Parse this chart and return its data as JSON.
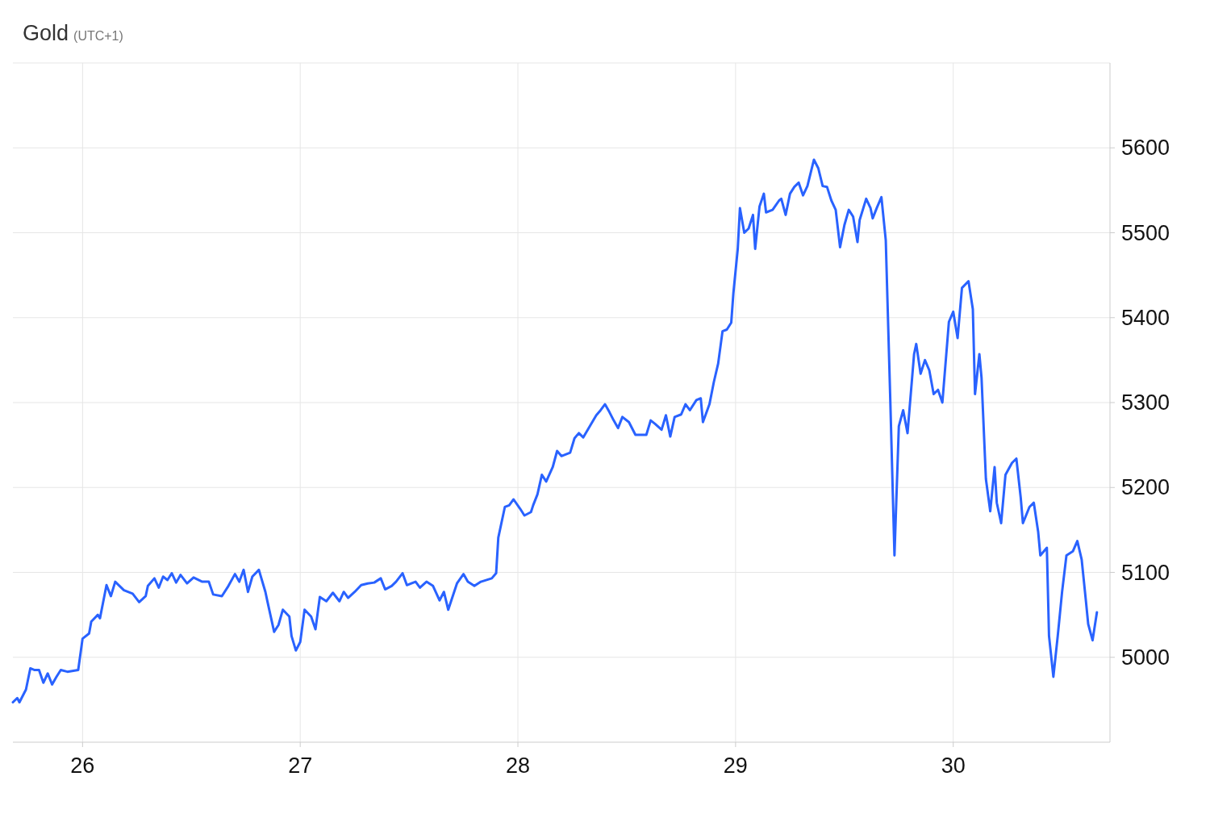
{
  "chart_data": {
    "type": "line",
    "title": "Gold",
    "subtitle": "(UTC+1)",
    "x": [
      25.68,
      25.7,
      25.71,
      25.74,
      25.76,
      25.78,
      25.8,
      25.82,
      25.84,
      25.86,
      25.88,
      25.9,
      25.93,
      25.98,
      26.0,
      26.03,
      26.04,
      26.07,
      26.08,
      26.11,
      26.13,
      26.15,
      26.17,
      26.19,
      26.23,
      26.26,
      26.29,
      26.3,
      26.33,
      26.35,
      26.37,
      26.39,
      26.41,
      26.43,
      26.45,
      26.48,
      26.51,
      26.55,
      26.58,
      26.6,
      26.64,
      26.67,
      26.7,
      26.72,
      26.74,
      26.76,
      26.78,
      26.81,
      26.84,
      26.85,
      26.88,
      26.9,
      26.92,
      26.95,
      26.96,
      26.98,
      27.0,
      27.02,
      27.05,
      27.07,
      27.09,
      27.12,
      27.15,
      27.18,
      27.2,
      27.22,
      27.25,
      27.28,
      27.31,
      27.34,
      27.37,
      27.39,
      27.42,
      27.44,
      27.47,
      27.49,
      27.53,
      27.55,
      27.58,
      27.61,
      27.64,
      27.66,
      27.68,
      27.72,
      27.75,
      27.77,
      27.8,
      27.83,
      27.88,
      27.9,
      27.91,
      27.94,
      27.96,
      27.98,
      28.01,
      28.03,
      28.06,
      28.07,
      28.09,
      28.11,
      28.13,
      28.16,
      28.18,
      28.2,
      28.24,
      28.26,
      28.28,
      28.3,
      28.33,
      28.36,
      28.38,
      28.4,
      28.42,
      28.44,
      28.46,
      28.48,
      28.51,
      28.54,
      28.59,
      28.61,
      28.63,
      28.66,
      28.68,
      28.7,
      28.72,
      28.75,
      28.77,
      28.79,
      28.82,
      28.84,
      28.85,
      28.88,
      28.9,
      28.92,
      28.94,
      28.96,
      28.98,
      28.99,
      29.01,
      29.02,
      29.04,
      29.06,
      29.08,
      29.09,
      29.11,
      29.13,
      29.14,
      29.17,
      29.2,
      29.21,
      29.23,
      29.25,
      29.27,
      29.29,
      29.31,
      29.33,
      29.36,
      29.38,
      29.4,
      29.42,
      29.44,
      29.46,
      29.48,
      29.5,
      29.52,
      29.54,
      29.56,
      29.57,
      29.6,
      29.62,
      29.63,
      29.65,
      29.67,
      29.69,
      29.71,
      29.73,
      29.75,
      29.77,
      29.79,
      29.82,
      29.83,
      29.85,
      29.87,
      29.89,
      29.91,
      29.93,
      29.95,
      29.98,
      30.0,
      30.02,
      30.04,
      30.07,
      30.09,
      30.1,
      30.12,
      30.13,
      30.15,
      30.17,
      30.19,
      30.2,
      30.22,
      30.24,
      30.27,
      30.29,
      30.31,
      30.32,
      30.35,
      30.37,
      30.39,
      30.4,
      30.43,
      30.44,
      30.46,
      30.48,
      30.5,
      30.52,
      30.55,
      30.57,
      30.59,
      30.61,
      30.62,
      30.64,
      30.66
    ],
    "series": [
      {
        "color": "#2962ff",
        "values": [
          4947,
          4952,
          4947,
          4962,
          4987,
          4985,
          4985,
          4970,
          4981,
          4968,
          4977,
          4985,
          4983,
          4985,
          5022,
          5028,
          5042,
          5050,
          5046,
          5085,
          5072,
          5089,
          5084,
          5079,
          5075,
          5065,
          5072,
          5084,
          5093,
          5082,
          5095,
          5091,
          5099,
          5088,
          5097,
          5087,
          5094,
          5089,
          5089,
          5074,
          5072,
          5084,
          5098,
          5089,
          5103,
          5077,
          5095,
          5103,
          5077,
          5065,
          5030,
          5038,
          5056,
          5048,
          5025,
          5008,
          5018,
          5056,
          5048,
          5033,
          5071,
          5066,
          5076,
          5066,
          5077,
          5070,
          5077,
          5085,
          5087,
          5088,
          5093,
          5080,
          5084,
          5089,
          5099,
          5085,
          5089,
          5082,
          5089,
          5084,
          5067,
          5077,
          5056,
          5087,
          5098,
          5089,
          5084,
          5089,
          5093,
          5099,
          5141,
          5177,
          5179,
          5186,
          5175,
          5167,
          5171,
          5179,
          5192,
          5215,
          5207,
          5224,
          5243,
          5237,
          5241,
          5258,
          5264,
          5259,
          5272,
          5285,
          5291,
          5298,
          5289,
          5279,
          5270,
          5283,
          5277,
          5262,
          5262,
          5279,
          5275,
          5268,
          5285,
          5260,
          5283,
          5286,
          5298,
          5291,
          5303,
          5305,
          5277,
          5298,
          5324,
          5346,
          5384,
          5386,
          5394,
          5429,
          5481,
          5529,
          5500,
          5505,
          5521,
          5481,
          5531,
          5546,
          5524,
          5527,
          5538,
          5540,
          5521,
          5546,
          5554,
          5559,
          5544,
          5555,
          5586,
          5576,
          5555,
          5554,
          5538,
          5527,
          5483,
          5509,
          5527,
          5519,
          5489,
          5515,
          5540,
          5529,
          5517,
          5530,
          5542,
          5491,
          5310,
          5120,
          5272,
          5291,
          5264,
          5357,
          5369,
          5334,
          5350,
          5338,
          5310,
          5315,
          5300,
          5395,
          5407,
          5376,
          5435,
          5443,
          5410,
          5310,
          5357,
          5329,
          5210,
          5172,
          5224,
          5182,
          5158,
          5215,
          5229,
          5234,
          5188,
          5158,
          5177,
          5182,
          5148,
          5120,
          5129,
          5025,
          4977,
          5025,
          5077,
          5120,
          5125,
          5137,
          5115,
          5065,
          5039,
          5020,
          5053
        ]
      }
    ],
    "xlim": [
      25.68,
      30.72
    ],
    "xticks": [
      26,
      27,
      28,
      29,
      30
    ],
    "ylim": [
      4900,
      5700
    ],
    "yticks": [
      5000,
      5100,
      5200,
      5300,
      5400,
      5500,
      5600
    ],
    "grid": true,
    "line_style": "solid",
    "marker": "none"
  }
}
